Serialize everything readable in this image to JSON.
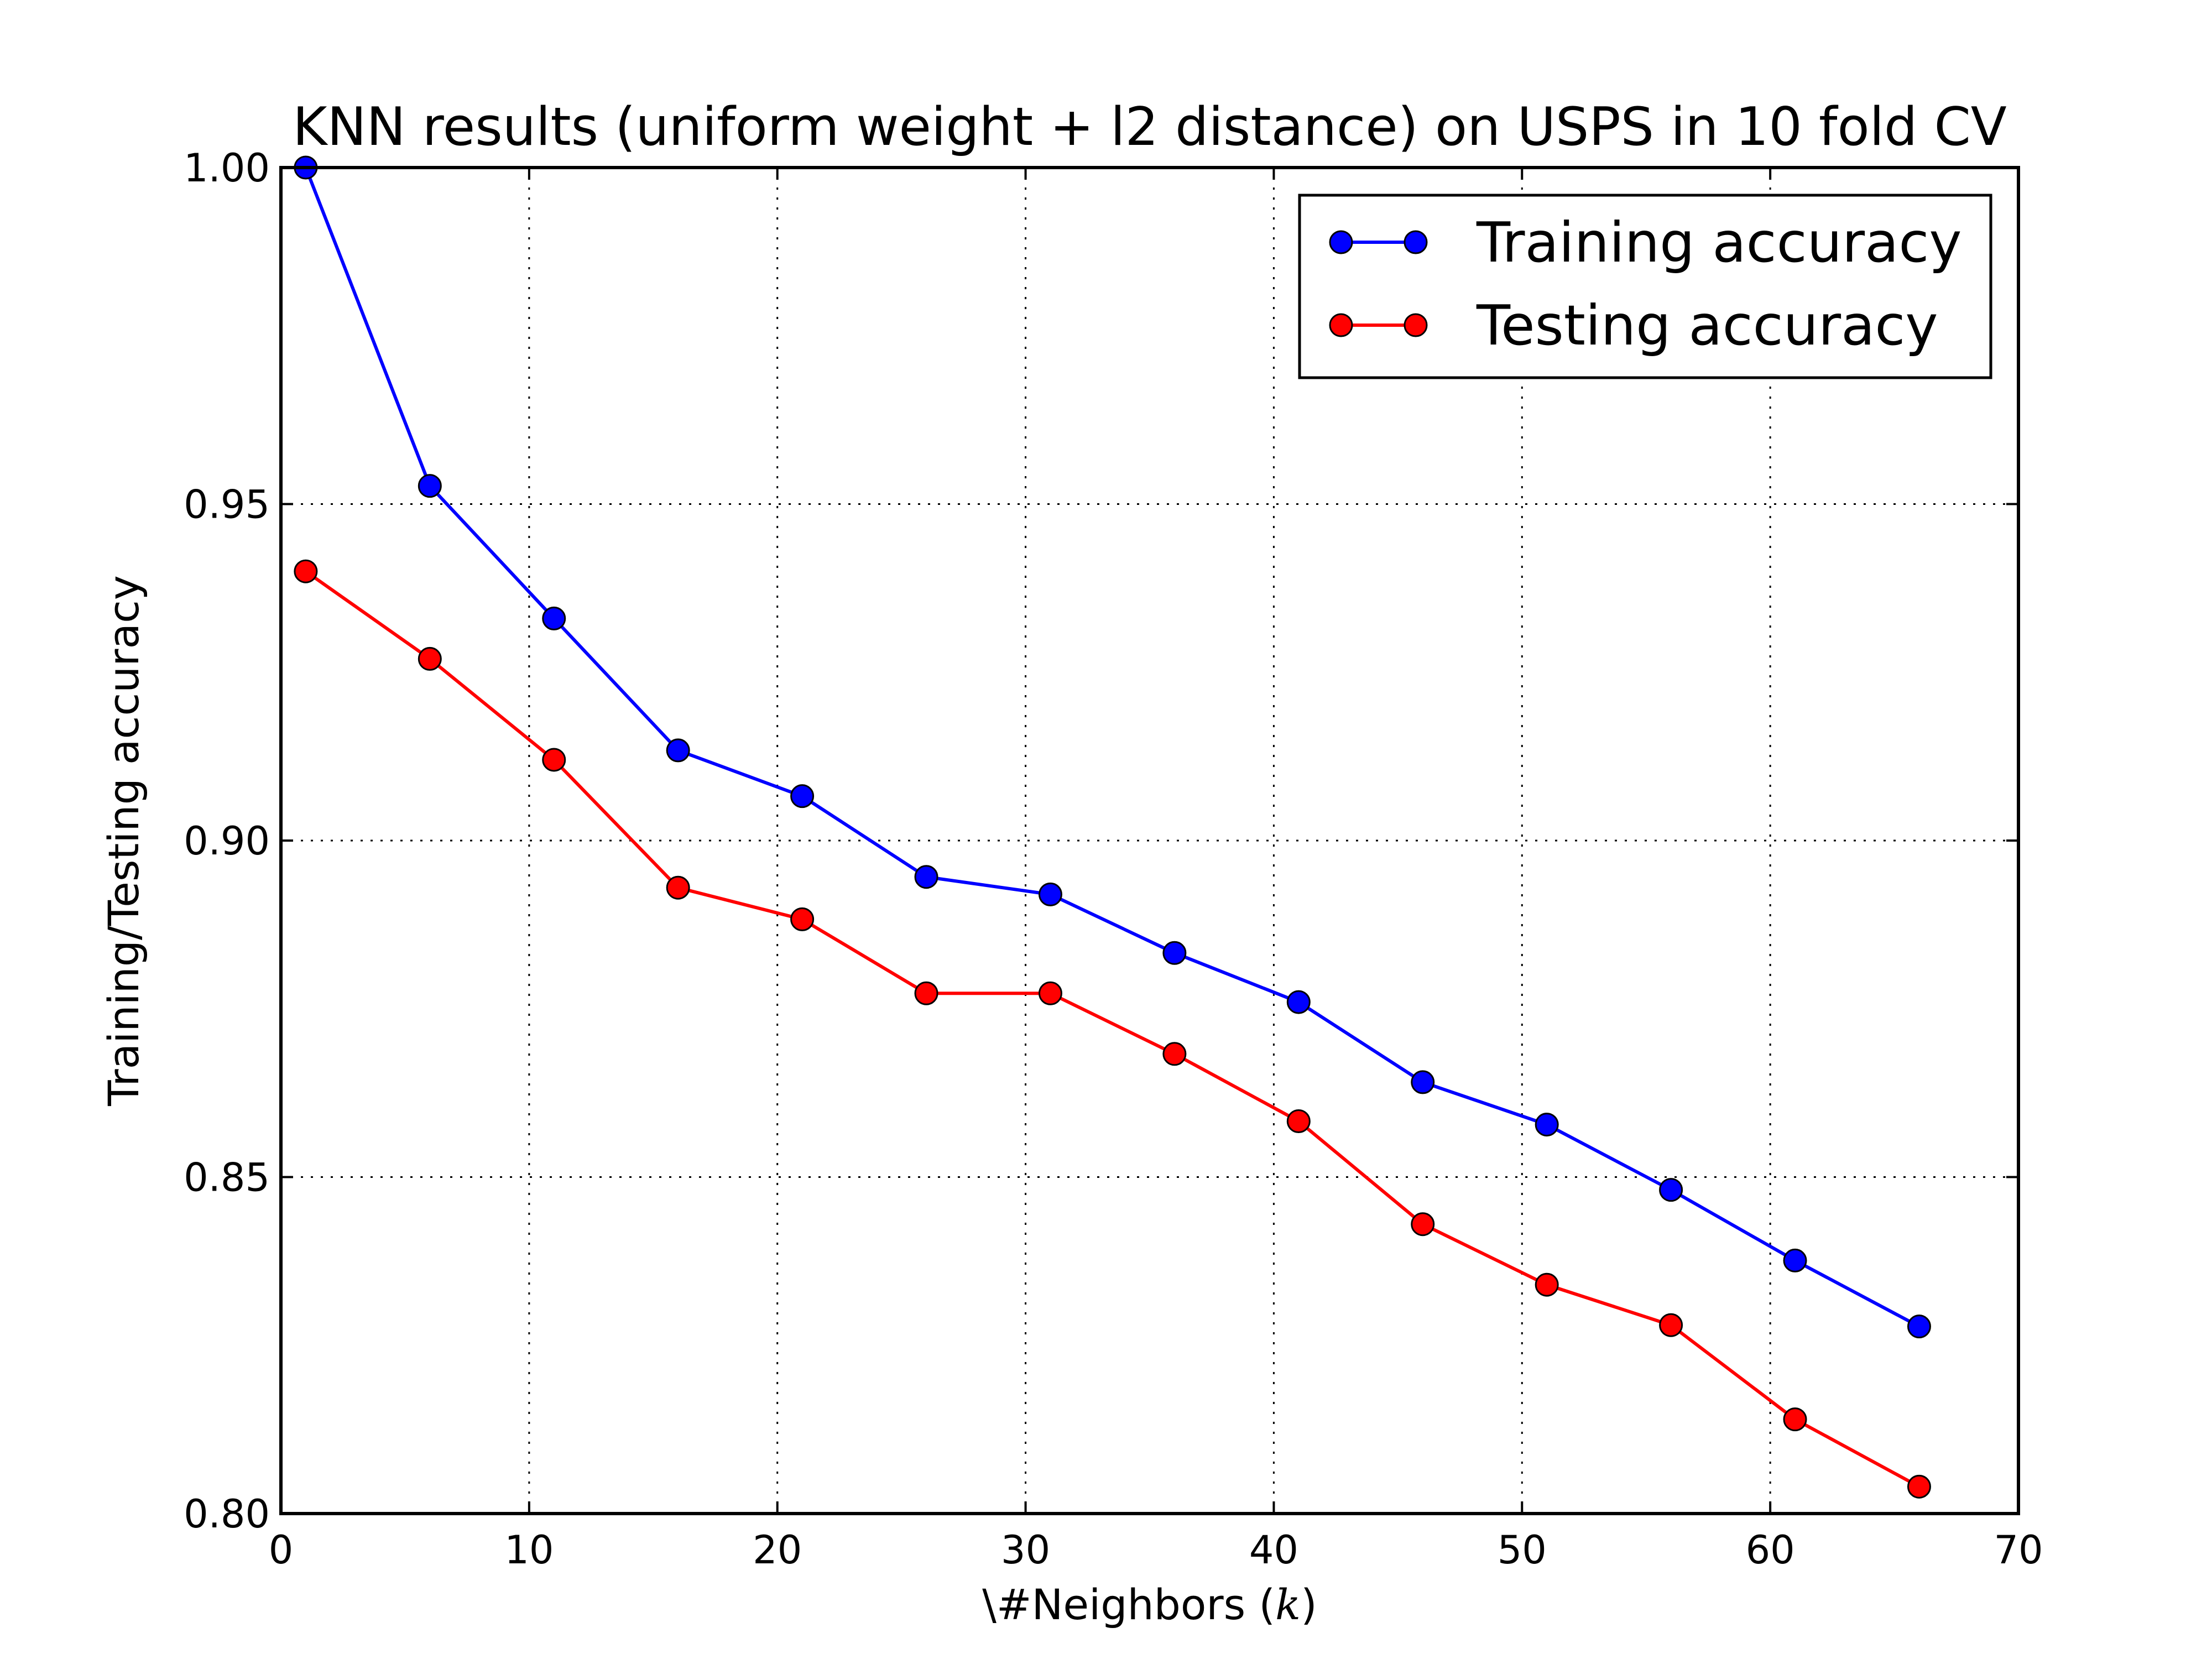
{
  "chart_data": {
    "type": "line",
    "title": "KNN results (uniform weight + l2 distance) on USPS in 10 fold CV",
    "xlabel": "\\#Neighbors (k)",
    "xlabel_prefix": "\\#Neighbors (",
    "xlabel_var": "k",
    "xlabel_suffix": ")",
    "ylabel": "Training/Testing accuracy",
    "xlim": [
      0,
      70
    ],
    "ylim": [
      0.8,
      1.0
    ],
    "x_ticks": [
      0,
      10,
      20,
      30,
      40,
      50,
      60,
      70
    ],
    "x_tick_labels": [
      "0",
      "10",
      "20",
      "30",
      "40",
      "50",
      "60",
      "70"
    ],
    "y_ticks": [
      0.8,
      0.85,
      0.9,
      0.95,
      1.0
    ],
    "y_tick_labels": [
      "0.80",
      "0.85",
      "0.90",
      "0.95",
      "1.00"
    ],
    "grid": true,
    "legend_position": "top-right",
    "x": [
      1,
      6,
      11,
      16,
      21,
      26,
      31,
      36,
      41,
      46,
      51,
      56,
      61,
      66
    ],
    "series": [
      {
        "name": "Training accuracy",
        "color": "#0000ff",
        "values": [
          1.0,
          0.9527,
          0.933,
          0.9134,
          0.9066,
          0.8946,
          0.892,
          0.8833,
          0.876,
          0.8641,
          0.8578,
          0.8481,
          0.8376,
          0.8278
        ]
      },
      {
        "name": "Testing accuracy",
        "color": "#ff0000",
        "values": [
          0.94,
          0.927,
          0.912,
          0.893,
          0.8883,
          0.8773,
          0.8773,
          0.8683,
          0.8583,
          0.843,
          0.834,
          0.828,
          0.814,
          0.804
        ]
      }
    ]
  }
}
